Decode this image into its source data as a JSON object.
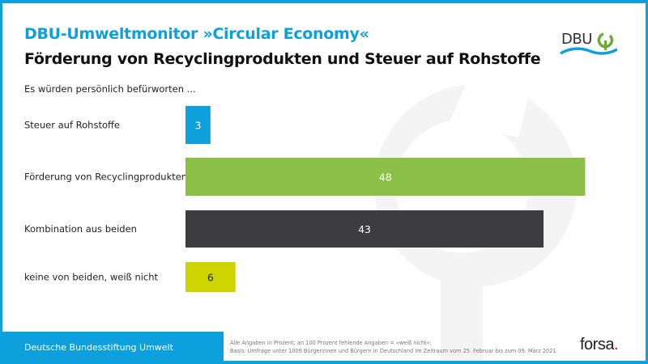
{
  "header": {
    "brand_title": "DBU-Umweltmonitor »Circular Economy«",
    "main_title": "Förderung von Recyclingprodukten und Steuer auf Rohstoffe",
    "subtitle": "Es würden persönlich befürworten ...",
    "logo_text": "DBU"
  },
  "chart_data": {
    "type": "bar",
    "orientation": "horizontal",
    "title": "Förderung von Recyclingprodukten und Steuer auf Rohstoffe",
    "subtitle": "Es würden persönlich befürworten ...",
    "xlabel": "",
    "ylabel": "",
    "unit": "Prozent",
    "xlim": [
      0,
      50
    ],
    "grid": false,
    "categories": [
      "Steuer auf Rohstoffe",
      "Förderung von Recyclingprodukten",
      "Kombination aus beiden",
      "keine von beiden, weiß nicht"
    ],
    "values": [
      3,
      48,
      43,
      6
    ],
    "colors": [
      "#0ea0dc",
      "#8cbf47",
      "#3d3d3f",
      "#cdd400"
    ],
    "label_colors": [
      "#ffffff",
      "#ffffff",
      "#ffffff",
      "#222222"
    ]
  },
  "footer": {
    "organization": "Deutsche Bundesstiftung Umwelt",
    "note_line1": "Alle Angaben in Prozent; an 100 Prozent fehlende Angaben = »weiß nicht«;",
    "note_line2": "Basis: Umfrage unter 1009 Bürgerinnen und Bürgern in Deutschland im Zeitraum vom 25. Februar bis zum 09. März 2021",
    "forsa_text": "forsa",
    "forsa_dot": "."
  },
  "colors": {
    "accent_blue": "#0ea0dc",
    "green": "#8cbf47",
    "dark": "#3d3d3f",
    "yellow": "#cdd400",
    "forsa_red": "#e2001a"
  }
}
